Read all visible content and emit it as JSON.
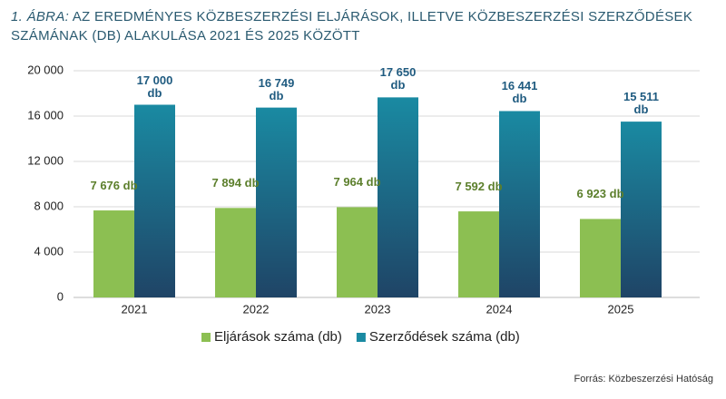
{
  "chart_data": {
    "type": "bar",
    "figure_label": "1. ÁBRA:",
    "title": "AZ EREDMÉNYES KÖZBESZERZÉSI ELJÁRÁSOK, ILLETVE KÖZBESZERZÉSI SZERZŐDÉSEK SZÁMÁNAK (DB) ALAKULÁSA 2021 ÉS 2025 KÖZÖTT",
    "categories": [
      "2021",
      "2022",
      "2023",
      "2024",
      "2025"
    ],
    "series": [
      {
        "name": "Eljárások száma (db)",
        "color": "#8cbf52",
        "label_color": "#5c7f2c",
        "values": [
          7676,
          7894,
          7964,
          7592,
          6923
        ],
        "value_labels": [
          "7 676 db",
          "7 894 db",
          "7 964 db",
          "7 592 db",
          "6 923 db"
        ]
      },
      {
        "name": "Szerződések száma (db)",
        "color": "#1a8aa2",
        "label_color": "#1f5b80",
        "values": [
          17000,
          16749,
          17650,
          16441,
          15511
        ],
        "value_labels": [
          "17 000 db",
          "16 749 db",
          "17 650 db",
          "16 441 db",
          "15 511 db"
        ]
      }
    ],
    "ylim": [
      0,
      20000
    ],
    "yticks": [
      0,
      {
        "value": 4000,
        "label": "4 000"
      },
      {
        "value": 8000,
        "label": "8 000"
      },
      {
        "value": 12000,
        "label": "12 000"
      },
      {
        "value": 16000,
        "label": "16 000"
      },
      {
        "value": 20000,
        "label": "20 000"
      }
    ],
    "grid": true,
    "legend": "bottom",
    "source": "Forrás: Közbeszerzési Hatóság"
  }
}
